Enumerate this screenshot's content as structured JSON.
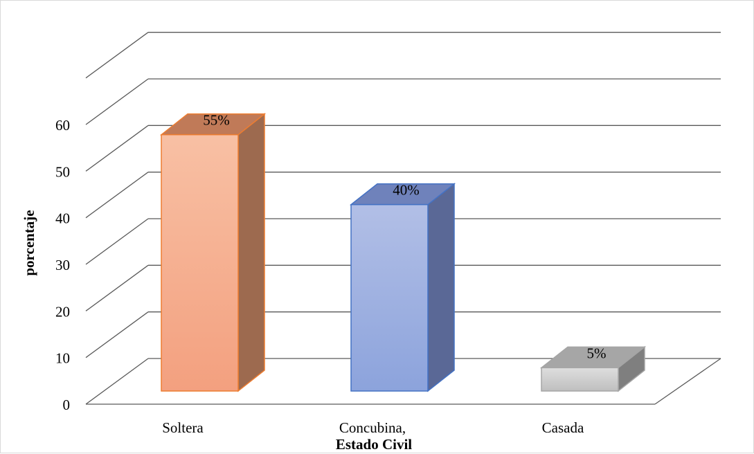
{
  "chart_data": {
    "type": "bar",
    "style": "3d-column",
    "categories": [
      "Soltera",
      "Concubina,",
      "Casada"
    ],
    "values": [
      55,
      40,
      5
    ],
    "data_labels": [
      "55%",
      "40%",
      "5%"
    ],
    "xlabel": "Estado Civil",
    "ylabel": "porcentaje",
    "ylim": [
      0,
      60
    ],
    "yticks": [
      "0",
      "10",
      "20",
      "30",
      "40",
      "50",
      "60"
    ],
    "grid": true,
    "legend": "none",
    "colors": {
      "Soltera": {
        "front_top": "#f8c0a4",
        "front_bottom": "#f3a07f",
        "side": "#9d6a4f",
        "top": "#c07a58",
        "stroke": "#ed7d31"
      },
      "Concubina,": {
        "front_top": "#b2bfe6",
        "front_bottom": "#8ca3dc",
        "side": "#5a6896",
        "top": "#6f82bb",
        "stroke": "#4472c4"
      },
      "Casada": {
        "front_top": "#dedede",
        "front_bottom": "#bfbfbf",
        "side": "#7f7f7f",
        "top": "#a6a6a6",
        "stroke": "#a5a5a5"
      }
    },
    "gridline_color": "#595959"
  }
}
